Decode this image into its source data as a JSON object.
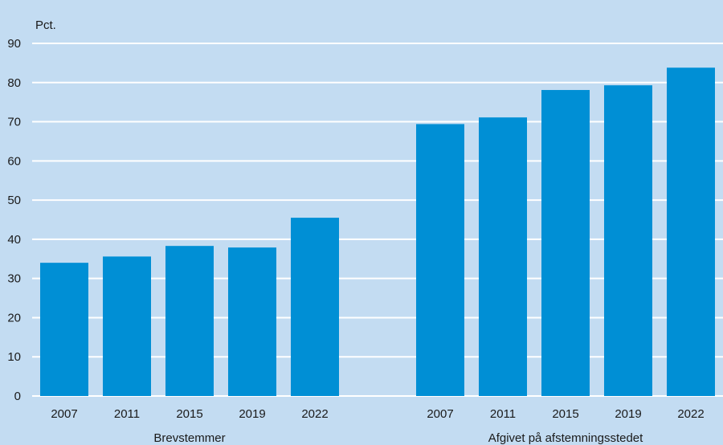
{
  "chart_data": {
    "type": "bar",
    "ylabel": "Pct.",
    "ylim": [
      0,
      90
    ],
    "yticks": [
      0,
      10,
      20,
      30,
      40,
      50,
      60,
      70,
      80,
      90
    ],
    "grid": true,
    "colors": {
      "background": "#c3dcf2",
      "bar": "#008fd5",
      "grid": "#ffffff"
    },
    "groups": [
      {
        "label": "Brevstemmer",
        "categories": [
          "2007",
          "2011",
          "2015",
          "2019",
          "2022"
        ],
        "values": [
          34.0,
          35.6,
          38.3,
          37.9,
          45.5
        ]
      },
      {
        "label": "Afgivet på afstemningsstedet",
        "categories": [
          "2007",
          "2011",
          "2015",
          "2019",
          "2022"
        ],
        "values": [
          69.4,
          71.1,
          78.1,
          79.3,
          83.8
        ]
      }
    ]
  }
}
